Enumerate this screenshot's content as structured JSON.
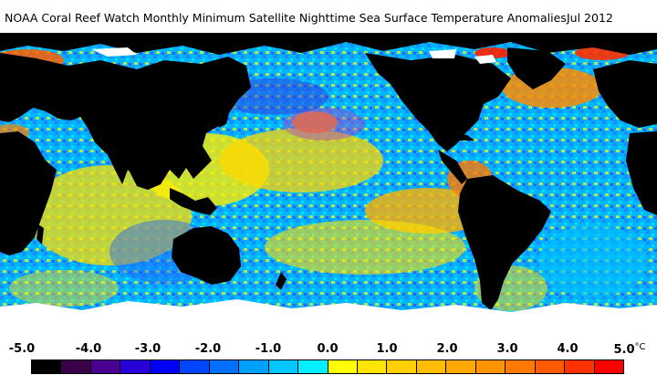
{
  "header": {
    "title": "NOAA Coral Reef Watch Monthly Minimum Satellite Nighttime Sea Surface Temperature Anomalies",
    "date": "Jul 2012"
  },
  "legend": {
    "ticks": [
      "-5.0",
      "-4.0",
      "-3.0",
      "-2.0",
      "-1.0",
      "0.0",
      "1.0",
      "2.0",
      "3.0",
      "4.0",
      "5.0"
    ],
    "unit": "°C",
    "colors": [
      "#000000",
      "#3a0048",
      "#4a0090",
      "#2800d8",
      "#0000ff",
      "#0046ff",
      "#0070ff",
      "#00a0ff",
      "#00c8ff",
      "#00f0ff",
      "#ffff00",
      "#ffe400",
      "#ffd000",
      "#ffbc00",
      "#ffa800",
      "#ff9400",
      "#ff7800",
      "#ff5a00",
      "#ff3200",
      "#ff0000"
    ]
  }
}
